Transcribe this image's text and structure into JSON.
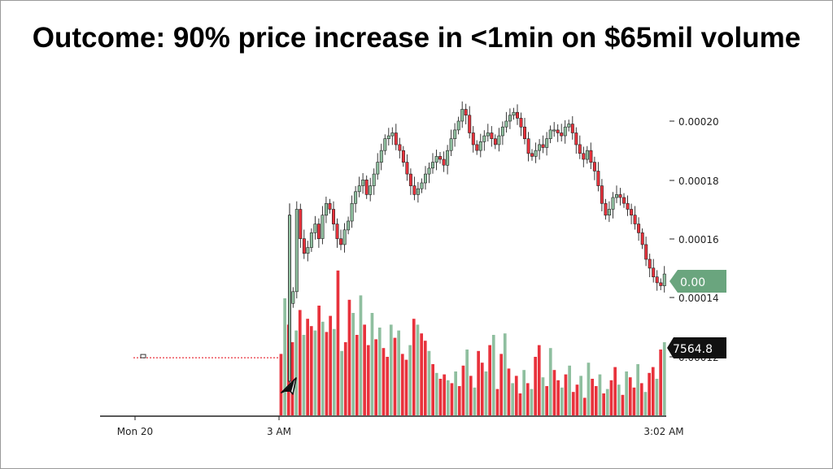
{
  "slide": {
    "title": "Outcome: 90% price increase in <1min on $65mil volume"
  },
  "chart_data": {
    "type": "candlestick",
    "title": "",
    "xlabel": "",
    "ylabel": "",
    "ylim": [
      0.00011,
      0.000206
    ],
    "y_ticks": [
      "0.00020",
      "0.00018",
      "0.00016",
      "0.00014",
      "0.00012"
    ],
    "y_tick_values": [
      0.0002,
      0.00018,
      0.00016,
      0.00014,
      0.00012
    ],
    "x_tick_labels": [
      "Mon 20",
      "3 AM",
      "3:02 AM"
    ],
    "price_label": "0.00",
    "volume_label": "7564.8",
    "pre_move_price": 0.0001195,
    "price_series_closes": [
      0.000142,
      0.00017,
      0.00016,
      0.000155,
      0.000157,
      0.000162,
      0.000165,
      0.00016,
      0.000168,
      0.000172,
      0.00017,
      0.000165,
      0.00016,
      0.000158,
      0.000163,
      0.000166,
      0.000172,
      0.000176,
      0.000178,
      0.00018,
      0.000175,
      0.000178,
      0.000182,
      0.000186,
      0.00019,
      0.000194,
      0.000195,
      0.000196,
      0.000192,
      0.00019,
      0.000186,
      0.000182,
      0.000178,
      0.000175,
      0.000177,
      0.000179,
      0.000182,
      0.000184,
      0.000186,
      0.000188,
      0.000187,
      0.000185,
      0.00019,
      0.000194,
      0.000197,
      0.0002,
      0.000204,
      0.000202,
      0.000196,
      0.000192,
      0.00019,
      0.000193,
      0.000195,
      0.000196,
      0.000194,
      0.000192,
      0.000195,
      0.000198,
      0.0002,
      0.000202,
      0.000203,
      0.000201,
      0.000198,
      0.000194,
      0.000189,
      0.000188,
      0.00019,
      0.000192,
      0.000191,
      0.000194,
      0.000197,
      0.000197,
      0.000196,
      0.000195,
      0.000198,
      0.000199,
      0.000196,
      0.000192,
      0.000189,
      0.000187,
      0.00019,
      0.000186,
      0.000183,
      0.000178,
      0.000172,
      0.000168,
      0.00017,
      0.000174,
      0.000175,
      0.000174,
      0.000172,
      0.00017,
      0.000168,
      0.000165,
      0.000162,
      0.000158,
      0.000153,
      0.00015,
      0.000147,
      0.000145,
      0.000144,
      0.000148
    ],
    "volume_series": [
      0.42,
      0.8,
      0.62,
      0.5,
      0.58,
      0.72,
      0.55,
      0.66,
      0.61,
      0.58,
      0.75,
      0.64,
      0.57,
      0.68,
      0.59,
      0.99,
      0.44,
      0.5,
      0.79,
      0.7,
      0.55,
      0.82,
      0.62,
      0.48,
      0.7,
      0.52,
      0.6,
      0.46,
      0.4,
      0.62,
      0.53,
      0.58,
      0.42,
      0.38,
      0.48,
      0.66,
      0.62,
      0.56,
      0.51,
      0.44,
      0.35,
      0.29,
      0.25,
      0.28,
      0.24,
      0.22,
      0.3,
      0.2,
      0.34,
      0.45,
      0.27,
      0.19,
      0.44,
      0.36,
      0.3,
      0.48,
      0.55,
      0.18,
      0.42,
      0.56,
      0.32,
      0.22,
      0.27,
      0.15,
      0.31,
      0.22,
      0.18,
      0.4,
      0.48,
      0.26,
      0.2,
      0.46,
      0.31,
      0.24,
      0.19,
      0.28,
      0.34,
      0.16,
      0.21,
      0.27,
      0.12,
      0.36,
      0.25,
      0.2,
      0.28,
      0.15,
      0.18,
      0.24,
      0.33,
      0.21,
      0.14,
      0.3,
      0.26,
      0.19,
      0.35,
      0.22,
      0.16,
      0.29,
      0.33,
      0.25,
      0.45,
      0.5
    ],
    "up_color": "#8fbf9f",
    "down_color": "#e8323c",
    "price_tag_color": "#6aa57e",
    "volume_tag_color": "#111111",
    "grid": false
  }
}
